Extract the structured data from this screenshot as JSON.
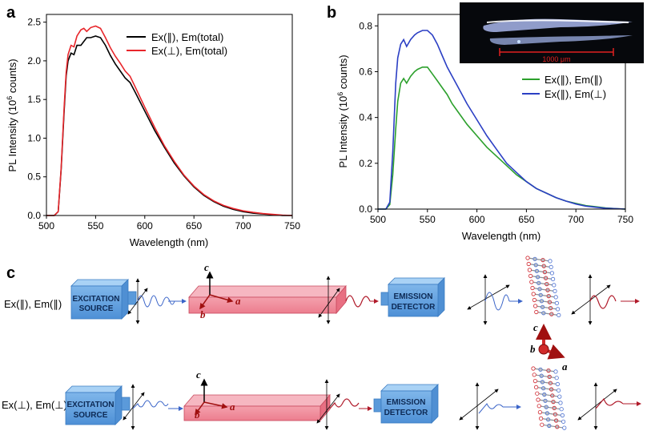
{
  "panels": {
    "a": "a",
    "b": "b",
    "c": "c"
  },
  "chart_data": [
    {
      "type": "line",
      "panel": "a",
      "xlabel": "Wavelength (nm)",
      "ylabel_main": "PL Intensity (10",
      "ylabel_sup": "6",
      "ylabel_end": " counts)",
      "xlim": [
        500,
        750
      ],
      "ylim": [
        0,
        2.6
      ],
      "xticks": [
        500,
        550,
        600,
        650,
        700,
        750
      ],
      "yticks": [
        0.0,
        0.5,
        1.0,
        1.5,
        2.0,
        2.5
      ],
      "ytick_labels": [
        "0.0",
        "0.5",
        "1.0",
        "1.5",
        "2.0",
        "2.5"
      ],
      "legend_position": "top-right",
      "series": [
        {
          "name": "Ex(∥), Em(total)",
          "color": "#000000",
          "x": [
            500,
            508,
            512,
            515,
            518,
            520,
            522,
            525,
            528,
            531,
            535,
            538,
            541,
            545,
            550,
            555,
            560,
            565,
            570,
            575,
            580,
            585,
            590,
            600,
            610,
            620,
            630,
            640,
            650,
            660,
            670,
            680,
            690,
            700,
            710,
            720,
            730,
            740,
            750
          ],
          "values": [
            0.0,
            0.0,
            0.05,
            0.6,
            1.35,
            1.8,
            2.0,
            2.1,
            2.08,
            2.2,
            2.2,
            2.25,
            2.3,
            2.3,
            2.32,
            2.3,
            2.2,
            2.07,
            1.96,
            1.87,
            1.78,
            1.72,
            1.6,
            1.35,
            1.1,
            0.88,
            0.68,
            0.51,
            0.37,
            0.26,
            0.18,
            0.12,
            0.08,
            0.05,
            0.03,
            0.02,
            0.01,
            0.0,
            0.0
          ]
        },
        {
          "name": "Ex(⊥), Em(total)",
          "color": "#e8262b",
          "x": [
            500,
            508,
            512,
            515,
            518,
            520,
            522,
            525,
            528,
            531,
            535,
            538,
            541,
            545,
            550,
            555,
            560,
            565,
            570,
            575,
            580,
            585,
            590,
            600,
            610,
            620,
            630,
            640,
            650,
            660,
            670,
            680,
            690,
            700,
            710,
            720,
            730,
            740,
            750
          ],
          "values": [
            0.0,
            0.0,
            0.05,
            0.62,
            1.4,
            1.85,
            2.08,
            2.2,
            2.18,
            2.32,
            2.4,
            2.42,
            2.38,
            2.43,
            2.45,
            2.42,
            2.3,
            2.17,
            2.06,
            1.97,
            1.87,
            1.8,
            1.67,
            1.4,
            1.14,
            0.9,
            0.7,
            0.52,
            0.38,
            0.27,
            0.19,
            0.13,
            0.09,
            0.06,
            0.04,
            0.025,
            0.015,
            0.005,
            0.0
          ]
        }
      ]
    },
    {
      "type": "line",
      "panel": "b",
      "xlabel": "Wavelength (nm)",
      "ylabel_main": "PL Intensity (10",
      "ylabel_sup": "6",
      "ylabel_end": " counts)",
      "xlim": [
        500,
        750
      ],
      "ylim": [
        0,
        0.85
      ],
      "xticks": [
        500,
        550,
        600,
        650,
        700,
        750
      ],
      "yticks": [
        0.0,
        0.2,
        0.4,
        0.6,
        0.8
      ],
      "ytick_labels": [
        "0.0",
        "0.2",
        "0.4",
        "0.6",
        "0.8"
      ],
      "legend_position": "right",
      "inset_scale_label": "1000 μm",
      "series": [
        {
          "name": "Ex(∥), Em(∥)",
          "color": "#2ca02c",
          "x": [
            500,
            508,
            512,
            515,
            518,
            520,
            523,
            526,
            529,
            533,
            537,
            540,
            545,
            550,
            555,
            560,
            565,
            570,
            575,
            580,
            590,
            600,
            610,
            620,
            630,
            640,
            650,
            660,
            670,
            680,
            690,
            700,
            710,
            720,
            730,
            740,
            750
          ],
          "values": [
            0.0,
            0.0,
            0.02,
            0.15,
            0.35,
            0.47,
            0.55,
            0.57,
            0.55,
            0.58,
            0.6,
            0.61,
            0.62,
            0.62,
            0.59,
            0.56,
            0.53,
            0.5,
            0.46,
            0.43,
            0.37,
            0.32,
            0.27,
            0.23,
            0.19,
            0.15,
            0.12,
            0.09,
            0.07,
            0.05,
            0.035,
            0.025,
            0.015,
            0.01,
            0.005,
            0.002,
            0.0
          ]
        },
        {
          "name": "Ex(∥), Em(⊥)",
          "color": "#2b3fc4",
          "x": [
            500,
            508,
            512,
            515,
            518,
            520,
            523,
            526,
            529,
            533,
            537,
            540,
            545,
            550,
            555,
            560,
            565,
            570,
            575,
            580,
            590,
            600,
            610,
            620,
            630,
            640,
            650,
            660,
            670,
            680,
            690,
            700,
            710,
            720,
            730,
            740,
            750
          ],
          "values": [
            0.0,
            0.0,
            0.03,
            0.25,
            0.55,
            0.66,
            0.72,
            0.74,
            0.71,
            0.74,
            0.76,
            0.77,
            0.78,
            0.78,
            0.76,
            0.72,
            0.67,
            0.62,
            0.58,
            0.54,
            0.46,
            0.39,
            0.32,
            0.26,
            0.2,
            0.16,
            0.12,
            0.09,
            0.07,
            0.05,
            0.035,
            0.022,
            0.013,
            0.008,
            0.004,
            0.002,
            0.0
          ]
        }
      ]
    }
  ],
  "schematic": {
    "row1_label": "Ex(∥), Em(∥)",
    "row2_label": "Ex(⊥), Em(⊥)",
    "source_line1": "EXCITATION",
    "source_line2": "SOURCE",
    "detector_line1": "EMISSION",
    "detector_line2": "DETECTOR",
    "axis_a": "a",
    "axis_b": "b",
    "axis_c": "c"
  }
}
